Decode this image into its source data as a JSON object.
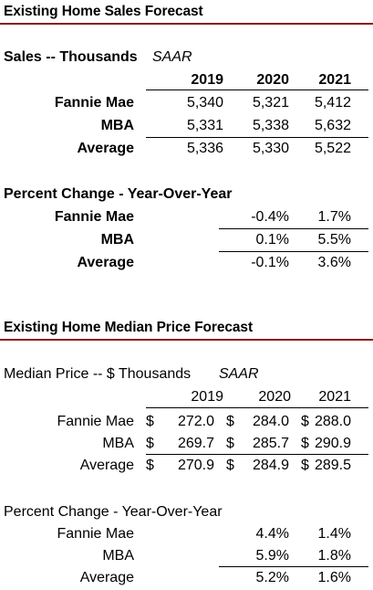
{
  "sales_section": {
    "title": "Existing Home Sales Forecast",
    "table_label": "Sales -- Thousands",
    "table_note": "SAAR",
    "years": [
      "2019",
      "2020",
      "2021"
    ],
    "rows": [
      {
        "label": "Fannie Mae",
        "values": [
          "5,340",
          "5,321",
          "5,412"
        ]
      },
      {
        "label": "MBA",
        "values": [
          "5,331",
          "5,338",
          "5,632"
        ]
      },
      {
        "label": "Average",
        "values": [
          "5,336",
          "5,330",
          "5,522"
        ]
      }
    ],
    "pct_label": "Percent Change - Year-Over-Year",
    "pct_rows": [
      {
        "label": "Fannie Mae",
        "values": [
          "-0.4%",
          "1.7%"
        ]
      },
      {
        "label": "MBA",
        "values": [
          "0.1%",
          "5.5%"
        ]
      },
      {
        "label": "Average",
        "values": [
          "-0.1%",
          "3.6%"
        ]
      }
    ]
  },
  "price_section": {
    "title": "Existing Home Median Price Forecast",
    "table_label": "Median Price -- $ Thousands",
    "table_note": "SAAR",
    "years": [
      "2019",
      "2020",
      "2021"
    ],
    "currency": "$",
    "rows": [
      {
        "label": "Fannie Mae",
        "values": [
          "272.0",
          "284.0",
          "288.0"
        ]
      },
      {
        "label": "MBA",
        "values": [
          "269.7",
          "285.7",
          "290.9"
        ]
      },
      {
        "label": "Average",
        "values": [
          "270.9",
          "284.9",
          "289.5"
        ]
      }
    ],
    "pct_label": "Percent Change - Year-Over-Year",
    "pct_rows": [
      {
        "label": "Fannie Mae",
        "values": [
          "4.4%",
          "1.4%"
        ]
      },
      {
        "label": "MBA",
        "values": [
          "5.9%",
          "1.8%"
        ]
      },
      {
        "label": "Average",
        "values": [
          "5.2%",
          "1.6%"
        ]
      }
    ]
  },
  "colors": {
    "divider": "#8b1a1a"
  }
}
